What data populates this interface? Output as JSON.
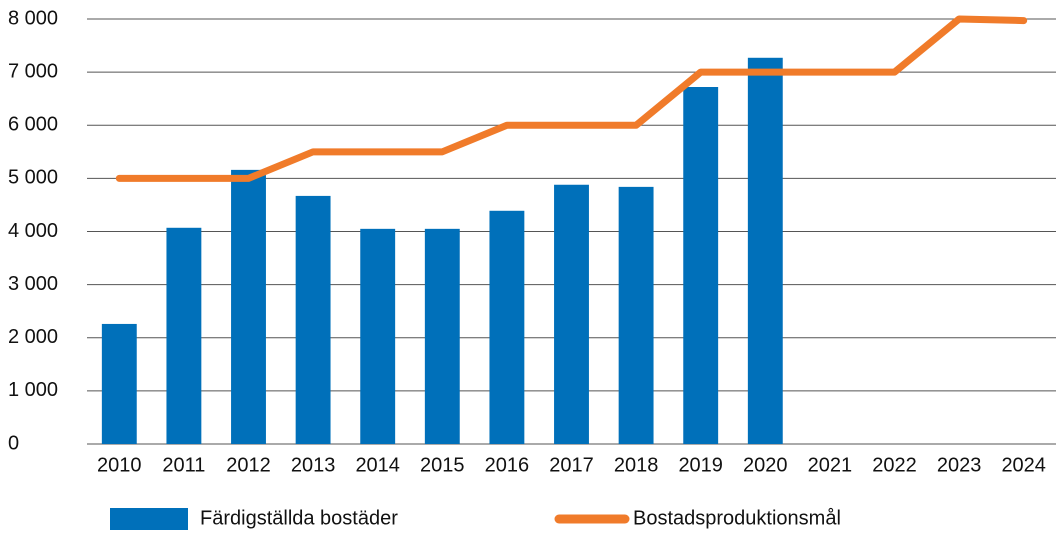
{
  "chart_data": {
    "type": "bar",
    "categories": [
      "2010",
      "2011",
      "2012",
      "2013",
      "2014",
      "2015",
      "2016",
      "2017",
      "2018",
      "2019",
      "2020",
      "2021",
      "2022",
      "2023",
      "2024"
    ],
    "series": [
      {
        "name": "Färdigställda bostäder",
        "type": "bar",
        "color": "#0070ba",
        "values": [
          2260,
          4070,
          5160,
          4670,
          4050,
          4050,
          4390,
          4880,
          4840,
          6720,
          7270,
          null,
          null,
          null,
          null
        ]
      },
      {
        "name": "Bostadsproduktionsmål",
        "type": "line",
        "color": "#f07b2a",
        "values": [
          5000,
          5000,
          5000,
          5500,
          5500,
          5500,
          6000,
          6000,
          6000,
          7000,
          7000,
          7000,
          7000,
          8000,
          7970
        ]
      }
    ],
    "ylim": [
      0,
      8000
    ],
    "yticks": [
      0,
      {
        "value": 1000,
        "label": "1 000"
      },
      {
        "value": 2000,
        "label": "2 000"
      },
      {
        "value": 3000,
        "label": "3 000"
      },
      {
        "value": 4000,
        "label": "4 000"
      },
      {
        "value": 5000,
        "label": "5 000"
      },
      {
        "value": 6000,
        "label": "6 000"
      },
      {
        "value": 7000,
        "label": "7 000"
      },
      {
        "value": 8000,
        "label": "8 000"
      }
    ],
    "grid": true,
    "legend": "bottom"
  }
}
